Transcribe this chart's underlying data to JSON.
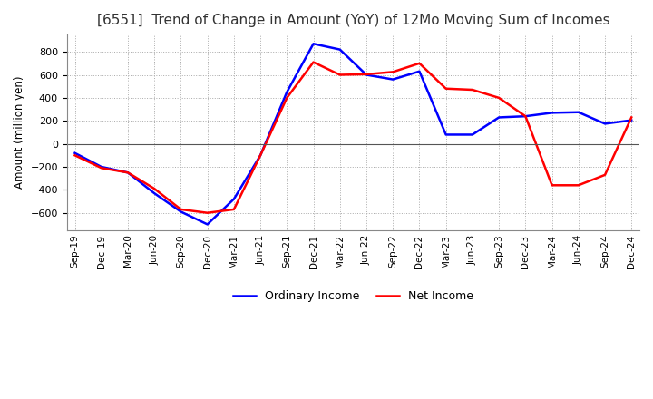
{
  "title": "[6551]  Trend of Change in Amount (YoY) of 12Mo Moving Sum of Incomes",
  "ylabel": "Amount (million yen)",
  "ylim": [
    -750,
    950
  ],
  "yticks": [
    -600,
    -400,
    -200,
    0,
    200,
    400,
    600,
    800
  ],
  "x_labels": [
    "Sep-19",
    "Dec-19",
    "Mar-20",
    "Jun-20",
    "Sep-20",
    "Dec-20",
    "Mar-21",
    "Jun-21",
    "Sep-21",
    "Dec-21",
    "Mar-22",
    "Jun-22",
    "Sep-22",
    "Dec-22",
    "Mar-23",
    "Jun-23",
    "Sep-23",
    "Dec-23",
    "Mar-24",
    "Jun-24",
    "Sep-24",
    "Dec-24"
  ],
  "ordinary_income": [
    -80,
    -200,
    -250,
    -430,
    -590,
    -700,
    -480,
    -100,
    450,
    870,
    820,
    600,
    560,
    630,
    80,
    80,
    230,
    240,
    270,
    275,
    175,
    205
  ],
  "net_income": [
    -100,
    -210,
    -250,
    -390,
    -570,
    -600,
    -570,
    -100,
    400,
    710,
    600,
    605,
    625,
    700,
    480,
    470,
    400,
    240,
    -360,
    -360,
    -270,
    230
  ],
  "ordinary_color": "#0000ff",
  "net_color": "#ff0000",
  "background_color": "#ffffff",
  "grid_color": "#aaaaaa",
  "legend_labels": [
    "Ordinary Income",
    "Net Income"
  ]
}
